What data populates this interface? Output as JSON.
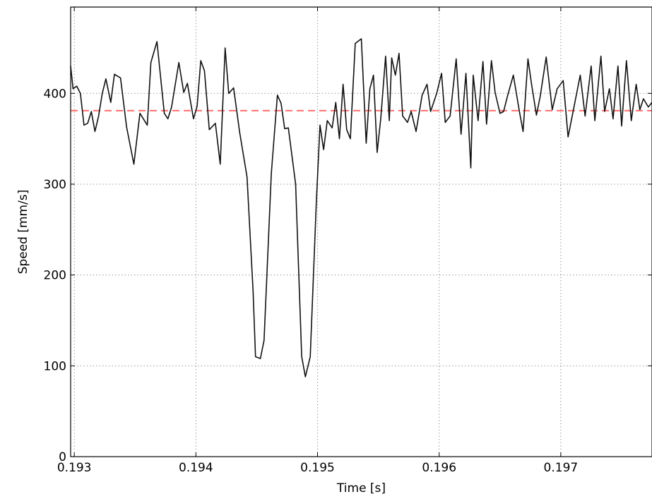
{
  "chart_data": {
    "type": "line",
    "title": "",
    "xlabel": "Time [s]",
    "ylabel": "Speed [mm/s]",
    "xlim": [
      0.19297,
      0.19775
    ],
    "ylim": [
      0,
      495
    ],
    "grid": true,
    "xticks": [
      0.193,
      0.194,
      0.195,
      0.196,
      0.197
    ],
    "xtick_labels": [
      "0.193",
      "0.194",
      "0.195",
      "0.196",
      "0.197"
    ],
    "yticks": [
      0,
      100,
      200,
      300,
      400
    ],
    "ytick_labels": [
      "0",
      "100",
      "200",
      "300",
      "400"
    ],
    "colors": {
      "speed": "#111111",
      "mean": "#ff6b6b",
      "grid": "#999999"
    },
    "reference_line": {
      "y": 381,
      "style": "dashed",
      "color": "#ff6b6b"
    },
    "series": [
      {
        "color": "#111111",
        "x": [
          0.19297,
          0.19299,
          0.19302,
          0.19305,
          0.19308,
          0.19311,
          0.19314,
          0.19317,
          0.1932,
          0.19323,
          0.19326,
          0.1933,
          0.19333,
          0.19338,
          0.19343,
          0.19349,
          0.19354,
          0.1936,
          0.19363,
          0.19368,
          0.19374,
          0.19377,
          0.1938,
          0.19386,
          0.1939,
          0.19393,
          0.19398,
          0.19401,
          0.19404,
          0.19407,
          0.19411,
          0.19416,
          0.1942,
          0.19424,
          0.19427,
          0.19431,
          0.19436,
          0.19442,
          0.19447,
          0.19449,
          0.19453,
          0.19456,
          0.19462,
          0.19467,
          0.1947,
          0.19473,
          0.19476,
          0.19482,
          0.19487,
          0.1949,
          0.19494,
          0.19499,
          0.19502,
          0.19505,
          0.19508,
          0.19512,
          0.19515,
          0.19518,
          0.19521,
          0.19524,
          0.19527,
          0.19531,
          0.19536,
          0.1954,
          0.19543,
          0.19546,
          0.19549,
          0.19552,
          0.19556,
          0.19559,
          0.19561,
          0.19564,
          0.19567,
          0.1957,
          0.19574,
          0.19577,
          0.19581,
          0.19586,
          0.1959,
          0.19593,
          0.19598,
          0.19602,
          0.19605,
          0.19609,
          0.19614,
          0.19618,
          0.19622,
          0.19626,
          0.19628,
          0.19632,
          0.19636,
          0.19639,
          0.19643,
          0.19646,
          0.1965,
          0.19653,
          0.19656,
          0.19661,
          0.19666,
          0.19669,
          0.19673,
          0.19676,
          0.1968,
          0.19683,
          0.19688,
          0.19693,
          0.19697,
          0.19702,
          0.19706,
          0.19711,
          0.19716,
          0.1972,
          0.19725,
          0.19728,
          0.19733,
          0.19736,
          0.1974,
          0.19743,
          0.19747,
          0.1975,
          0.19754,
          0.19758,
          0.19762,
          0.19765,
          0.19768,
          0.19772,
          0.19775
        ],
        "y": [
          430,
          405,
          408,
          400,
          365,
          367,
          380,
          358,
          375,
          400,
          416,
          390,
          421,
          417,
          363,
          322,
          378,
          365,
          434,
          457,
          378,
          372,
          385,
          434,
          401,
          411,
          372,
          386,
          436,
          425,
          360,
          367,
          322,
          450,
          400,
          406,
          357,
          308,
          182,
          110,
          108,
          128,
          312,
          398,
          389,
          361,
          362,
          300,
          110,
          88,
          110,
          280,
          365,
          338,
          370,
          362,
          390,
          350,
          410,
          360,
          350,
          455,
          460,
          345,
          405,
          420,
          335,
          372,
          441,
          370,
          439,
          420,
          444,
          375,
          368,
          380,
          358,
          398,
          410,
          380,
          400,
          422,
          368,
          375,
          438,
          355,
          422,
          318,
          420,
          370,
          435,
          366,
          436,
          401,
          378,
          380,
          396,
          420,
          380,
          358,
          438,
          410,
          376,
          396,
          440,
          382,
          405,
          414,
          352,
          386,
          420,
          375,
          430,
          370,
          441,
          380,
          405,
          372,
          430,
          364,
          436,
          370,
          410,
          382,
          394,
          385,
          390
        ]
      }
    ]
  }
}
